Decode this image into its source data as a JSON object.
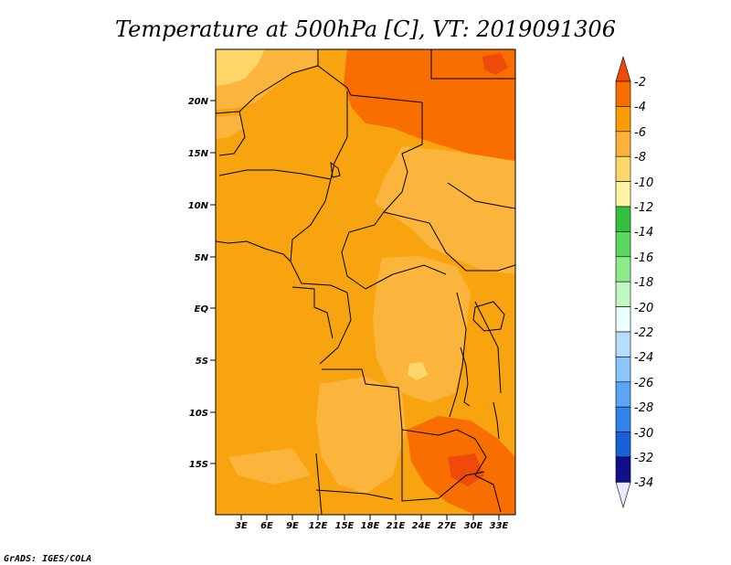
{
  "title": "Temperature at 500hPa [C], VT: 2019091306",
  "credit": "GrADS: IGES/COLA",
  "map": {
    "lon_ticks": [
      "3E",
      "6E",
      "9E",
      "12E",
      "15E",
      "18E",
      "21E",
      "24E",
      "27E",
      "30E",
      "33E"
    ],
    "lat_ticks": [
      "20N",
      "15N",
      "10N",
      "5N",
      "EQ",
      "5S",
      "10S",
      "15S"
    ]
  },
  "colorbar": {
    "labels": [
      "-2",
      "-4",
      "-6",
      "-8",
      "-10",
      "-12",
      "-14",
      "-16",
      "-18",
      "-20",
      "-22",
      "-24",
      "-26",
      "-28",
      "-30",
      "-32",
      "-34"
    ],
    "colors": [
      "#f04a0a",
      "#f86c00",
      "#f89c00",
      "#fab23a",
      "#fcd86c",
      "#fef4a4",
      "#32c040",
      "#5ad860",
      "#8cec8c",
      "#c2f6c2",
      "#eaffff",
      "#b8dcff",
      "#8cc4fc",
      "#5aa6f4",
      "#3282ec",
      "#1860d8",
      "#0a3cb4",
      "#10108a",
      "#e8e8ff"
    ]
  },
  "colors": {
    "base_field": "#f8a410",
    "warm_field": "#f86e00",
    "cool_field": "#fbb53c",
    "coolest_field": "#fdd66a",
    "border": "#000000"
  }
}
